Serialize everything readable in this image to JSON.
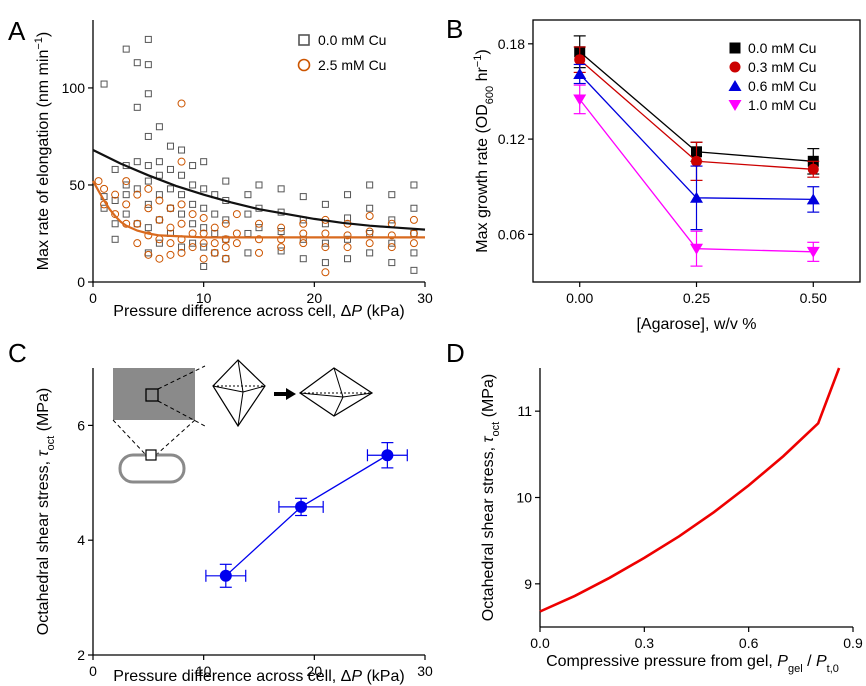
{
  "chart_data": [
    {
      "panel": "A",
      "type": "scatter",
      "xlabel": "Pressure difference across cell, ΔP (kPa)",
      "ylabel": "Max rate of elongation (nm min⁻¹)",
      "xlim": [
        0,
        30
      ],
      "ylim": [
        0,
        135
      ],
      "xticks": [
        0,
        10,
        20,
        30
      ],
      "yticks": [
        0,
        50,
        100
      ],
      "legend_position": "top-right",
      "series": [
        {
          "name": "0.0 mM Cu",
          "color": "#555555",
          "marker": "square",
          "points": [
            [
              1,
              102
            ],
            [
              1,
              44
            ],
            [
              1,
              38
            ],
            [
              2,
              58
            ],
            [
              2,
              42
            ],
            [
              2,
              30
            ],
            [
              2,
              22
            ],
            [
              3,
              120
            ],
            [
              3,
              60
            ],
            [
              3,
              50
            ],
            [
              3,
              45
            ],
            [
              3,
              35
            ],
            [
              4,
              113
            ],
            [
              4,
              90
            ],
            [
              4,
              62
            ],
            [
              4,
              48
            ],
            [
              4,
              30
            ],
            [
              5,
              125
            ],
            [
              5,
              112
            ],
            [
              5,
              97
            ],
            [
              5,
              75
            ],
            [
              5,
              60
            ],
            [
              5,
              52
            ],
            [
              5,
              40
            ],
            [
              5,
              28
            ],
            [
              5,
              15
            ],
            [
              6,
              80
            ],
            [
              6,
              62
            ],
            [
              6,
              55
            ],
            [
              6,
              45
            ],
            [
              6,
              32
            ],
            [
              6,
              20
            ],
            [
              7,
              70
            ],
            [
              7,
              58
            ],
            [
              7,
              48
            ],
            [
              7,
              38
            ],
            [
              7,
              25
            ],
            [
              8,
              68
            ],
            [
              8,
              55
            ],
            [
              8,
              45
            ],
            [
              8,
              35
            ],
            [
              8,
              18
            ],
            [
              9,
              60
            ],
            [
              9,
              50
            ],
            [
              9,
              40
            ],
            [
              9,
              30
            ],
            [
              9,
              20
            ],
            [
              10,
              62
            ],
            [
              10,
              48
            ],
            [
              10,
              38
            ],
            [
              10,
              28
            ],
            [
              10,
              18
            ],
            [
              10,
              8
            ],
            [
              11,
              45
            ],
            [
              11,
              35
            ],
            [
              11,
              25
            ],
            [
              11,
              15
            ],
            [
              12,
              52
            ],
            [
              12,
              42
            ],
            [
              12,
              32
            ],
            [
              12,
              22
            ],
            [
              12,
              12
            ],
            [
              14,
              45
            ],
            [
              14,
              35
            ],
            [
              14,
              25
            ],
            [
              14,
              15
            ],
            [
              15,
              50
            ],
            [
              15,
              38
            ],
            [
              15,
              28
            ],
            [
              17,
              48
            ],
            [
              17,
              36
            ],
            [
              17,
              26
            ],
            [
              17,
              16
            ],
            [
              19,
              44
            ],
            [
              19,
              32
            ],
            [
              19,
              22
            ],
            [
              19,
              12
            ],
            [
              21,
              40
            ],
            [
              21,
              30
            ],
            [
              21,
              20
            ],
            [
              21,
              10
            ],
            [
              23,
              45
            ],
            [
              23,
              33
            ],
            [
              23,
              22
            ],
            [
              23,
              12
            ],
            [
              25,
              50
            ],
            [
              25,
              38
            ],
            [
              25,
              25
            ],
            [
              25,
              15
            ],
            [
              27,
              45
            ],
            [
              27,
              32
            ],
            [
              27,
              20
            ],
            [
              27,
              10
            ],
            [
              29,
              50
            ],
            [
              29,
              38
            ],
            [
              29,
              25
            ],
            [
              29,
              15
            ],
            [
              29,
              6
            ]
          ]
        },
        {
          "name": "2.5 mM Cu",
          "color": "#cc5500",
          "marker": "circle",
          "points": [
            [
              0.5,
              52
            ],
            [
              1,
              48
            ],
            [
              1,
              40
            ],
            [
              2,
              45
            ],
            [
              2,
              35
            ],
            [
              3,
              52
            ],
            [
              3,
              40
            ],
            [
              3,
              30
            ],
            [
              4,
              45
            ],
            [
              4,
              30
            ],
            [
              4,
              20
            ],
            [
              5,
              48
            ],
            [
              5,
              38
            ],
            [
              5,
              24
            ],
            [
              5,
              14
            ],
            [
              6,
              42
            ],
            [
              6,
              32
            ],
            [
              6,
              22
            ],
            [
              6,
              12
            ],
            [
              7,
              38
            ],
            [
              7,
              28
            ],
            [
              7,
              20
            ],
            [
              7,
              14
            ],
            [
              8,
              92
            ],
            [
              8,
              62
            ],
            [
              8,
              40
            ],
            [
              8,
              30
            ],
            [
              8,
              22
            ],
            [
              8,
              15
            ],
            [
              9,
              35
            ],
            [
              9,
              25
            ],
            [
              9,
              18
            ],
            [
              10,
              33
            ],
            [
              10,
              25
            ],
            [
              10,
              20
            ],
            [
              10,
              12
            ],
            [
              11,
              28
            ],
            [
              11,
              20
            ],
            [
              11,
              15
            ],
            [
              12,
              30
            ],
            [
              12,
              22
            ],
            [
              12,
              18
            ],
            [
              12,
              12
            ],
            [
              13,
              35
            ],
            [
              13,
              25
            ],
            [
              13,
              20
            ],
            [
              15,
              30
            ],
            [
              15,
              22
            ],
            [
              15,
              15
            ],
            [
              17,
              28
            ],
            [
              17,
              22
            ],
            [
              17,
              18
            ],
            [
              19,
              30
            ],
            [
              19,
              25
            ],
            [
              19,
              20
            ],
            [
              21,
              32
            ],
            [
              21,
              25
            ],
            [
              21,
              18
            ],
            [
              21,
              5
            ],
            [
              23,
              30
            ],
            [
              23,
              24
            ],
            [
              23,
              18
            ],
            [
              25,
              34
            ],
            [
              25,
              26
            ],
            [
              25,
              20
            ],
            [
              27,
              30
            ],
            [
              27,
              24
            ],
            [
              27,
              18
            ],
            [
              29,
              32
            ],
            [
              29,
              25
            ],
            [
              29,
              20
            ]
          ]
        }
      ],
      "fits": [
        {
          "name": "0.0 mM Cu",
          "color": "#111111",
          "points": [
            [
              0,
              68
            ],
            [
              2.5,
              61
            ],
            [
              5,
              55
            ],
            [
              7.5,
              49.5
            ],
            [
              10,
              45
            ],
            [
              12.5,
              41
            ],
            [
              15,
              37.5
            ],
            [
              17.5,
              35
            ],
            [
              20,
              32.5
            ],
            [
              22.5,
              30.5
            ],
            [
              25,
              29
            ],
            [
              27.5,
              28
            ],
            [
              30,
              27
            ]
          ]
        },
        {
          "name": "2.5 mM Cu",
          "color": "#d96a1e",
          "points": [
            [
              0,
              52
            ],
            [
              0.5,
              47
            ],
            [
              1,
              42
            ],
            [
              1.5,
              37.5
            ],
            [
              2,
              34
            ],
            [
              2.5,
              31
            ],
            [
              3,
              29
            ],
            [
              4,
              26.5
            ],
            [
              5,
              25
            ],
            [
              6,
              24
            ],
            [
              8,
              23.5
            ],
            [
              10,
              23
            ],
            [
              15,
              23
            ],
            [
              20,
              23
            ],
            [
              25,
              23
            ],
            [
              30,
              23
            ]
          ]
        }
      ]
    },
    {
      "panel": "B",
      "type": "line",
      "xlabel": "[Agarose], w/v %",
      "ylabel": "Max growth rate (OD₆₀₀ hr⁻¹)",
      "xlim": [
        -0.1,
        0.6
      ],
      "ylim": [
        0.03,
        0.195
      ],
      "xticks": [
        0.0,
        0.25,
        0.5
      ],
      "xtick_labels": [
        "0.00",
        "0.25",
        "0.50"
      ],
      "yticks": [
        0.06,
        0.12,
        0.18
      ],
      "ytick_labels": [
        "0.06",
        "0.12",
        "0.18"
      ],
      "legend_position": "top-right",
      "x": [
        0.0,
        0.25,
        0.5
      ],
      "series": [
        {
          "name": "0.0 mM Cu",
          "color": "#000000",
          "marker": "square",
          "values": [
            0.175,
            0.112,
            0.106
          ],
          "errors": [
            0.01,
            0.006,
            0.008
          ]
        },
        {
          "name": "0.3 mM Cu",
          "color": "#cc0000",
          "marker": "circle",
          "values": [
            0.17,
            0.106,
            0.101
          ],
          "errors": [
            0.008,
            0.012,
            0.005
          ]
        },
        {
          "name": "0.6 mM Cu",
          "color": "#0000dd",
          "marker": "triangle-up",
          "values": [
            0.161,
            0.083,
            0.082
          ],
          "errors": [
            0.006,
            0.02,
            0.008
          ]
        },
        {
          "name": "1.0 mM Cu",
          "color": "#ff00ff",
          "marker": "triangle-down",
          "values": [
            0.145,
            0.051,
            0.049
          ],
          "errors": [
            0.009,
            0.011,
            0.006
          ]
        }
      ]
    },
    {
      "panel": "C",
      "type": "line",
      "xlabel": "Pressure difference across cell, ΔP (kPa)",
      "ylabel": "Octahedral shear stress, τoct (MPa)",
      "xlim": [
        0,
        30
      ],
      "ylim": [
        2,
        7
      ],
      "xticks": [
        0,
        10,
        20,
        30
      ],
      "yticks": [
        2,
        4,
        6
      ],
      "x": [
        12.0,
        18.8,
        26.6
      ],
      "series": [
        {
          "color": "#0000ee",
          "values": [
            3.38,
            4.58,
            5.48
          ],
          "xerr": [
            1.8,
            2.0,
            1.8
          ],
          "yerr": [
            0.2,
            0.15,
            0.22
          ]
        }
      ]
    },
    {
      "panel": "D",
      "type": "line",
      "xlabel": "Compressive pressure from gel, Pgel / Pt,0",
      "ylabel": "Octahedral shear stress, τoct (MPa)",
      "xlim": [
        0,
        0.9
      ],
      "ylim": [
        8.5,
        11.5
      ],
      "xticks": [
        0.0,
        0.3,
        0.6,
        0.9
      ],
      "xtick_labels": [
        "0.0",
        "0.3",
        "0.6",
        "0.9"
      ],
      "yticks": [
        9,
        10,
        11
      ],
      "series": [
        {
          "color": "#ee0000",
          "x": [
            0.0,
            0.1,
            0.2,
            0.3,
            0.4,
            0.5,
            0.6,
            0.7,
            0.8,
            0.86
          ],
          "values": [
            8.68,
            8.86,
            9.07,
            9.3,
            9.55,
            9.83,
            10.14,
            10.48,
            10.86,
            11.5
          ]
        }
      ]
    }
  ],
  "panel_labels": [
    "A",
    "B",
    "C",
    "D"
  ]
}
